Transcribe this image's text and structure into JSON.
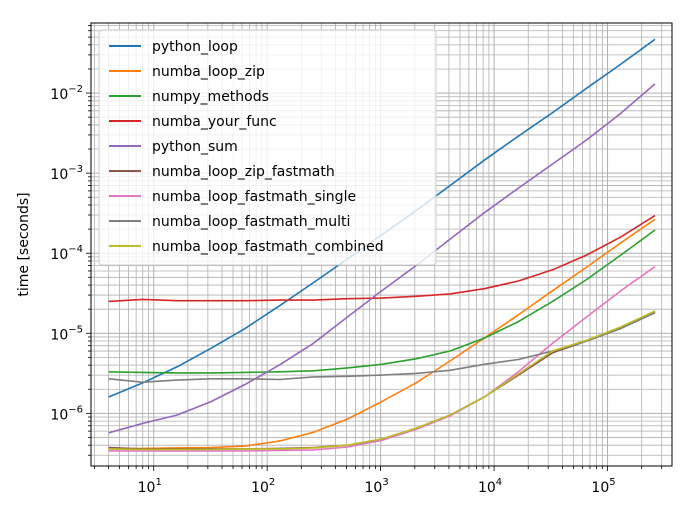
{
  "chart_data": {
    "type": "line",
    "title": "",
    "xlabel": "",
    "ylabel": "time [seconds]",
    "xscale": "log",
    "yscale": "log",
    "xlim": [
      2.8,
      370000
    ],
    "ylim": [
      2.2e-07,
      0.075
    ],
    "grid": "major and minor",
    "legend_position": "upper-left",
    "xtick_labels": [
      {
        "base": "10",
        "exp": "1"
      },
      {
        "base": "10",
        "exp": "2"
      },
      {
        "base": "10",
        "exp": "3"
      },
      {
        "base": "10",
        "exp": "4"
      },
      {
        "base": "10",
        "exp": "5"
      }
    ],
    "ytick_labels": [
      {
        "base": "10",
        "exp": "−6"
      },
      {
        "base": "10",
        "exp": "−5"
      },
      {
        "base": "10",
        "exp": "−4"
      },
      {
        "base": "10",
        "exp": "−3"
      },
      {
        "base": "10",
        "exp": "−2"
      }
    ],
    "x": [
      4,
      8,
      16,
      32,
      64,
      128,
      256,
      512,
      1024,
      2048,
      4096,
      8192,
      16384,
      32768,
      65536,
      131072,
      262144
    ],
    "series": [
      {
        "name": "python_loop",
        "color": "#1f77b4",
        "values": [
          1.6e-06,
          2.4e-06,
          3.8e-06,
          6.5e-06,
          1.15e-05,
          2.2e-05,
          4.3e-05,
          8.5e-05,
          0.00017,
          0.00034,
          0.0007,
          0.00145,
          0.0029,
          0.0057,
          0.0115,
          0.023,
          0.047
        ]
      },
      {
        "name": "numba_loop_zip",
        "color": "#ff7f0e",
        "values": [
          3.6e-07,
          3.65e-07,
          3.7e-07,
          3.75e-07,
          3.9e-07,
          4.5e-07,
          5.8e-07,
          8.5e-07,
          1.4e-06,
          2.4e-06,
          4.5e-06,
          8.7e-06,
          1.7e-05,
          3.4e-05,
          6.7e-05,
          0.000135,
          0.000265
        ]
      },
      {
        "name": "numpy_methods",
        "color": "#2ca02c",
        "values": [
          3.3e-06,
          3.25e-06,
          3.2e-06,
          3.2e-06,
          3.25e-06,
          3.3e-06,
          3.4e-06,
          3.7e-06,
          4.1e-06,
          4.8e-06,
          6e-06,
          8.7e-06,
          1.4e-05,
          2.5e-05,
          4.7e-05,
          9.5e-05,
          0.000195
        ]
      },
      {
        "name": "numba_your_func",
        "color": "#d62728",
        "values": [
          2.5e-05,
          2.65e-05,
          2.55e-05,
          2.55e-05,
          2.55e-05,
          2.6e-05,
          2.6e-05,
          2.7e-05,
          2.75e-05,
          2.9e-05,
          3.1e-05,
          3.6e-05,
          4.5e-05,
          6.2e-05,
          9.5e-05,
          0.00016,
          0.000295
        ]
      },
      {
        "name": "python_sum",
        "color": "#9467bd",
        "values": [
          5.7e-07,
          7.5e-07,
          9.5e-07,
          1.4e-06,
          2.3e-06,
          4e-06,
          7.5e-06,
          1.6e-05,
          3.4e-05,
          7e-05,
          0.00015,
          0.00032,
          0.00065,
          0.0013,
          0.0026,
          0.0056,
          0.013
        ]
      },
      {
        "name": "numba_loop_zip_fastmath",
        "color": "#8c564b",
        "values": [
          3.75e-07,
          3.6e-07,
          3.6e-07,
          3.6e-07,
          3.6e-07,
          3.65e-07,
          3.75e-07,
          4e-07,
          4.7e-07,
          6.5e-07,
          9.5e-07,
          1.6e-06,
          3e-06,
          5.7e-06,
          8e-06,
          1.15e-05,
          1.85e-05
        ]
      },
      {
        "name": "numba_loop_fastmath_single",
        "color": "#e377c2",
        "values": [
          3.4e-07,
          3.4e-07,
          3.4e-07,
          3.4e-07,
          3.4e-07,
          3.45e-07,
          3.5e-07,
          3.8e-07,
          4.6e-07,
          6.3e-07,
          9.3e-07,
          1.6e-06,
          3.3e-06,
          7.5e-06,
          1.6e-05,
          3.4e-05,
          6.8e-05
        ]
      },
      {
        "name": "numba_loop_fastmath_multi",
        "color": "#7f7f7f",
        "values": [
          2.7e-06,
          2.45e-06,
          2.6e-06,
          2.7e-06,
          2.7e-06,
          2.65e-06,
          2.85e-06,
          2.9e-06,
          3e-06,
          3.15e-06,
          3.45e-06,
          4.1e-06,
          4.7e-06,
          6e-06,
          8e-06,
          1.15e-05,
          1.8e-05
        ]
      },
      {
        "name": "numba_loop_fastmath_combined",
        "color": "#bcbd22",
        "values": [
          3.6e-07,
          3.55e-07,
          3.55e-07,
          3.55e-07,
          3.6e-07,
          3.6e-07,
          3.7e-07,
          4e-07,
          4.8e-07,
          6.5e-07,
          9.5e-07,
          1.6e-06,
          3.1e-06,
          6e-06,
          8.2e-06,
          1.2e-05,
          1.9e-05
        ]
      }
    ]
  }
}
